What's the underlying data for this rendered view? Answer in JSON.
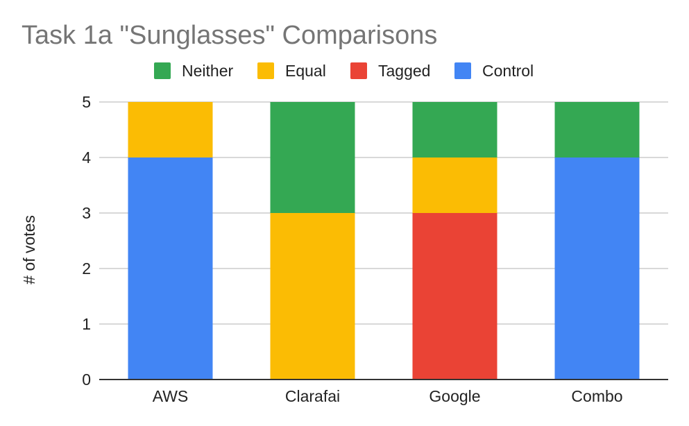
{
  "chart_data": {
    "type": "bar",
    "stacked": true,
    "title": "Task 1a \"Sunglasses\" Comparisons",
    "xlabel": "",
    "ylabel": "# of votes",
    "ylim": [
      0,
      5
    ],
    "yticks": [
      "0",
      "1",
      "2",
      "3",
      "4",
      "5"
    ],
    "categories": [
      "AWS",
      "Clarafai",
      "Google",
      "Combo"
    ],
    "grid": true,
    "legend_position": "top",
    "legend_order": [
      "Neither",
      "Equal",
      "Tagged",
      "Control"
    ],
    "series": [
      {
        "name": "Control",
        "color": "#4285f4",
        "values": [
          4,
          0,
          0,
          4
        ]
      },
      {
        "name": "Tagged",
        "color": "#ea4335",
        "values": [
          0,
          0,
          3,
          0
        ]
      },
      {
        "name": "Equal",
        "color": "#fbbc04",
        "values": [
          1,
          3,
          1,
          0
        ]
      },
      {
        "name": "Neither",
        "color": "#34a853",
        "values": [
          0,
          2,
          1,
          1
        ]
      }
    ]
  }
}
